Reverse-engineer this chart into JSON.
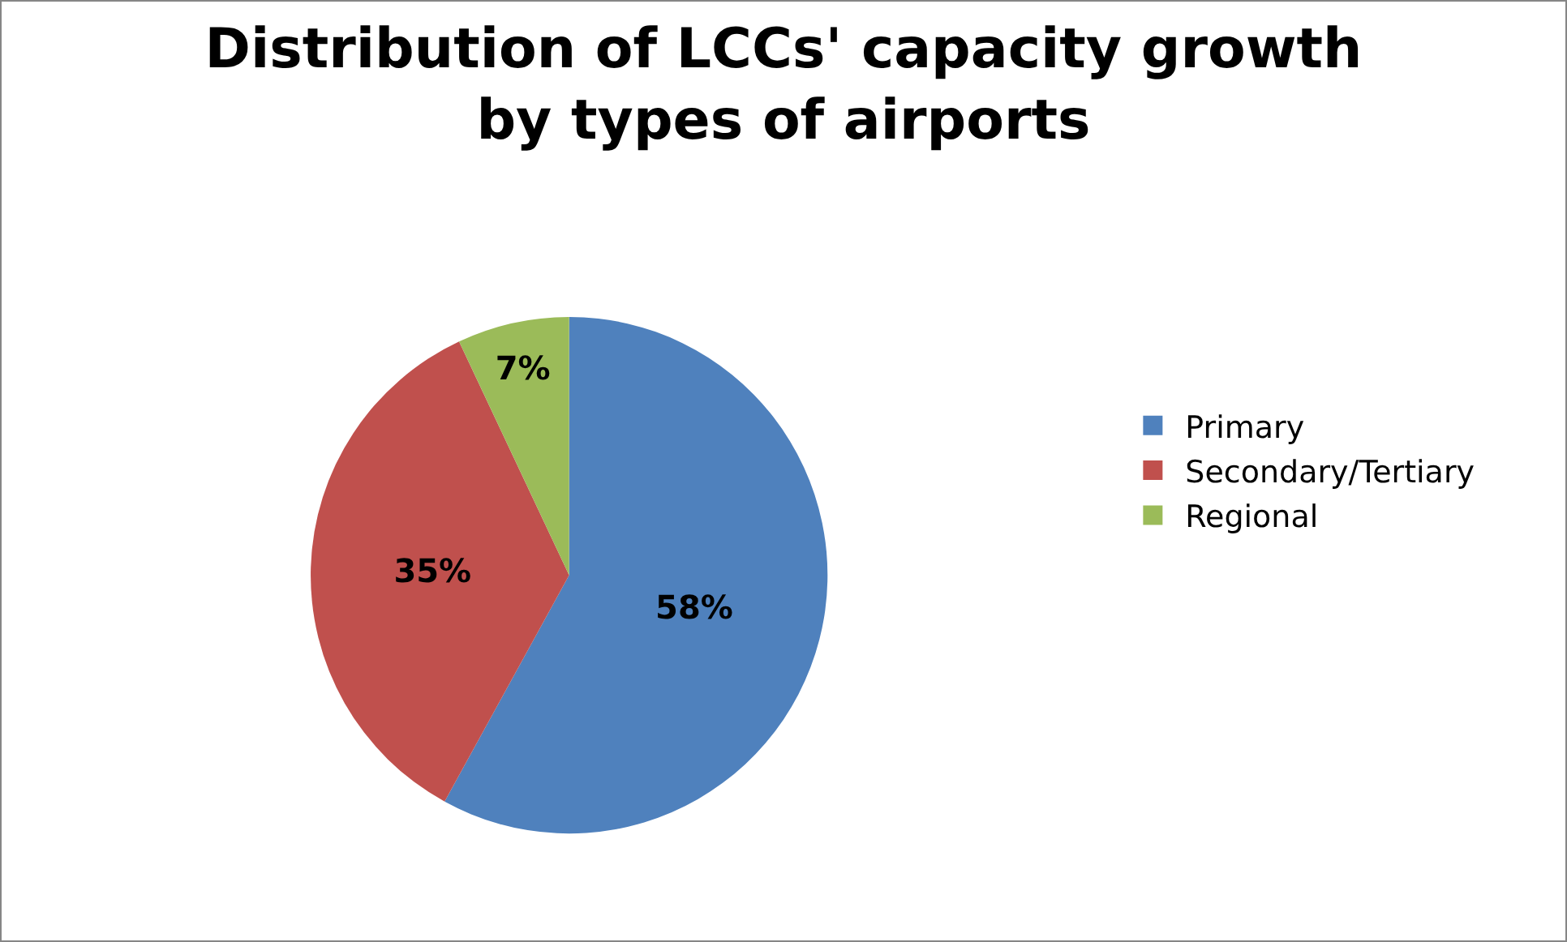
{
  "chart_data": {
    "type": "pie",
    "title": "Distribution of LCCs' capacity growth by types of airports",
    "categories": [
      "Primary",
      "Secondary/Tertiary",
      "Regional"
    ],
    "values": [
      58,
      35,
      7
    ],
    "colors": [
      "#4f81bd",
      "#c0504d",
      "#9bbb59"
    ],
    "value_labels": [
      "58%",
      "35%",
      "7%"
    ],
    "legend": "right"
  }
}
